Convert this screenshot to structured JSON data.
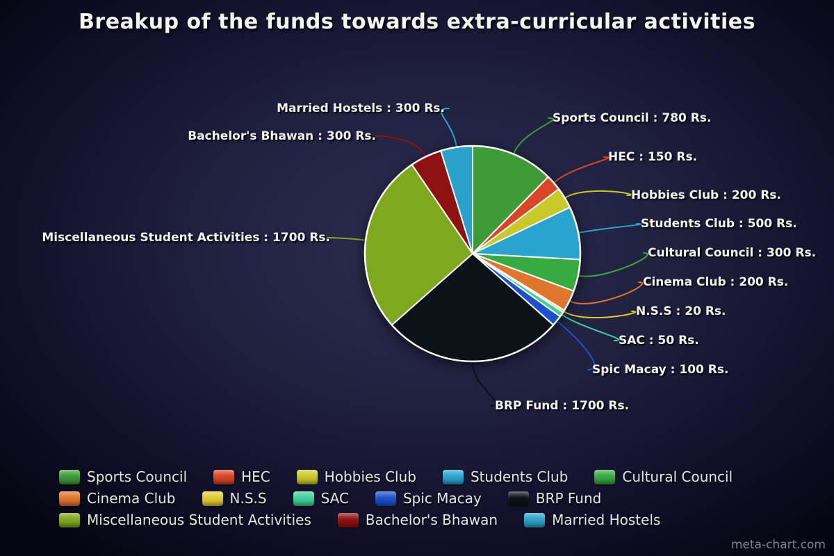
{
  "title": "Breakup of the funds towards extra-curricular activities",
  "watermark": "meta-chart.com",
  "chart_data": {
    "type": "pie",
    "title": "Breakup of the funds towards extra-curricular activities",
    "unit": "Rs.",
    "direction": "clockwise",
    "start_at": "top",
    "legend_position": "bottom-left",
    "label_format": "{label} : {value} Rs.",
    "slices": [
      {
        "label": "Sports Council",
        "value": 780,
        "color": "#3e9b38"
      },
      {
        "label": "HEC",
        "value": 150,
        "color": "#d94527"
      },
      {
        "label": "Hobbies Club",
        "value": 200,
        "color": "#c9c92a"
      },
      {
        "label": "Students Club",
        "value": 500,
        "color": "#2aa4cf"
      },
      {
        "label": "Cultural Council",
        "value": 300,
        "color": "#36ab41"
      },
      {
        "label": "Cinema Club",
        "value": 200,
        "color": "#e0752e"
      },
      {
        "label": "N.S.S",
        "value": 20,
        "color": "#e3cb32"
      },
      {
        "label": "SAC",
        "value": 50,
        "color": "#41cf9e"
      },
      {
        "label": "Spic Macay",
        "value": 100,
        "color": "#1d50cc"
      },
      {
        "label": "BRP Fund",
        "value": 1700,
        "color": "#0b1318"
      },
      {
        "label": "Miscellaneous Student Activities",
        "value": 1700,
        "color": "#7fa81f"
      },
      {
        "label": "Bachelor's Bhawan",
        "value": 300,
        "color": "#8e1211"
      },
      {
        "label": "Married Hostels",
        "value": 300,
        "color": "#2ba2c9"
      }
    ]
  },
  "legend": {
    "rows": [
      [
        "Sports Council",
        "HEC",
        "Hobbies Club",
        "Students Club",
        "Cultural Council"
      ],
      [
        "Cinema Club",
        "N.S.S",
        "SAC",
        "Spic Macay",
        "BRP Fund"
      ],
      [
        "Miscellaneous Student Activities",
        "Bachelor's Bhawan",
        "Married Hostels"
      ]
    ]
  }
}
